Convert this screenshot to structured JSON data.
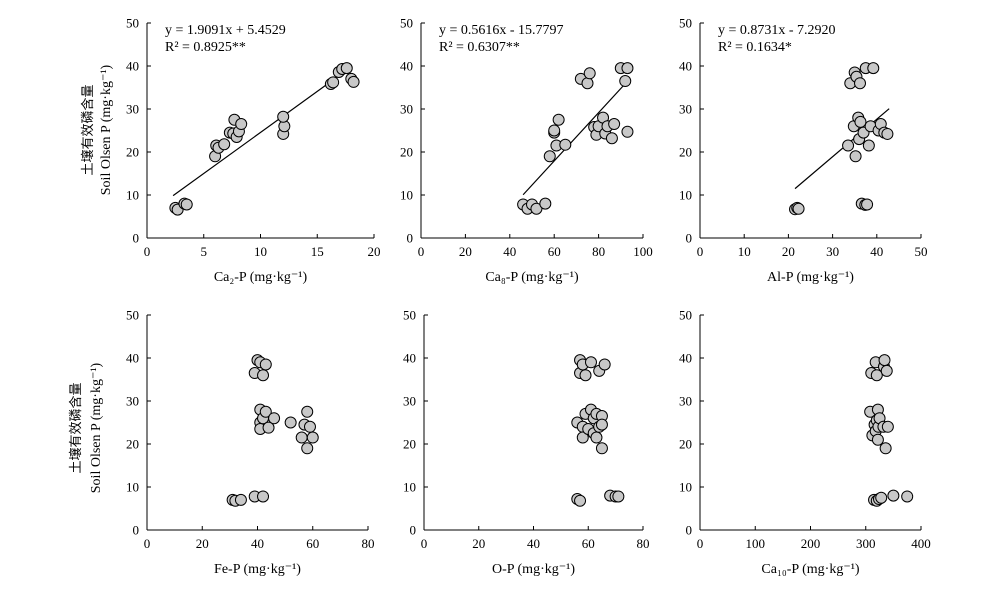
{
  "figure": {
    "ylabel_cn": "土壤有效磷含量",
    "ylabel_en": "Soil Olsen P (mg·kg⁻¹)"
  },
  "colors": {
    "marker_fill": "#c8c8c8",
    "marker_stroke": "#000000",
    "line": "#000000"
  },
  "chart_data": [
    {
      "type": "scatter",
      "xlabel": "Ca₂-P (mg·kg⁻¹)",
      "ylabel": "Soil Olsen P (mg·kg⁻¹)",
      "xlim": [
        0,
        20
      ],
      "ylim": [
        0,
        50
      ],
      "xticks": [
        0,
        5,
        10,
        15,
        20
      ],
      "yticks": [
        0,
        10,
        20,
        30,
        40,
        50
      ],
      "equation": "y = 1.9091x + 5.4529",
      "r2": "R² = 0.8925**",
      "fit": {
        "slope": 1.9091,
        "intercept": 5.4529,
        "x_range": [
          2.3,
          18.0
        ]
      },
      "points": [
        [
          2.5,
          7.0
        ],
        [
          2.7,
          6.6
        ],
        [
          3.3,
          8.0
        ],
        [
          3.5,
          7.8
        ],
        [
          6.0,
          19.0
        ],
        [
          6.1,
          21.5
        ],
        [
          6.3,
          21.0
        ],
        [
          6.8,
          21.8
        ],
        [
          7.3,
          24.5
        ],
        [
          7.6,
          24.3
        ],
        [
          7.7,
          27.5
        ],
        [
          7.9,
          23.5
        ],
        [
          8.1,
          24.8
        ],
        [
          8.3,
          26.5
        ],
        [
          12.0,
          24.2
        ],
        [
          12.1,
          26.0
        ],
        [
          12.0,
          28.2
        ],
        [
          16.2,
          35.8
        ],
        [
          16.4,
          36.2
        ],
        [
          16.9,
          38.6
        ],
        [
          17.2,
          39.3
        ],
        [
          17.6,
          39.5
        ],
        [
          18.0,
          37.0
        ],
        [
          18.2,
          36.3
        ]
      ]
    },
    {
      "type": "scatter",
      "xlabel": "Ca₈-P (mg·kg⁻¹)",
      "ylabel": "Soil Olsen P (mg·kg⁻¹)",
      "xlim": [
        0,
        100
      ],
      "ylim": [
        0,
        50
      ],
      "xticks": [
        0,
        20,
        40,
        60,
        80,
        100
      ],
      "yticks": [
        0,
        10,
        20,
        30,
        40,
        50
      ],
      "equation": "y = 0.5616x - 15.7797",
      "r2": "R² = 0.6307**",
      "fit": {
        "slope": 0.5616,
        "intercept": -15.7797,
        "x_range": [
          46,
          93
        ]
      },
      "points": [
        [
          46,
          7.8
        ],
        [
          48,
          6.8
        ],
        [
          50,
          7.8
        ],
        [
          52,
          6.8
        ],
        [
          56,
          8.0
        ],
        [
          58,
          19.0
        ],
        [
          60,
          24.5
        ],
        [
          60,
          25.0
        ],
        [
          61,
          21.5
        ],
        [
          62,
          27.5
        ],
        [
          65,
          21.7
        ],
        [
          72,
          37.0
        ],
        [
          75,
          36.0
        ],
        [
          76,
          38.3
        ],
        [
          78,
          25.8
        ],
        [
          79,
          24.0
        ],
        [
          80,
          26.0
        ],
        [
          82,
          28.0
        ],
        [
          83,
          24.3
        ],
        [
          84,
          26.0
        ],
        [
          86,
          23.2
        ],
        [
          87,
          26.5
        ],
        [
          90,
          39.5
        ],
        [
          92,
          36.5
        ],
        [
          93,
          24.7
        ],
        [
          93,
          39.5
        ]
      ]
    },
    {
      "type": "scatter",
      "xlabel": "Al-P (mg·kg⁻¹)",
      "ylabel": "Soil Olsen P (mg·kg⁻¹)",
      "xlim": [
        0,
        50
      ],
      "ylim": [
        0,
        50
      ],
      "xticks": [
        0,
        10,
        20,
        30,
        40,
        50
      ],
      "yticks": [
        0,
        10,
        20,
        30,
        40,
        50
      ],
      "equation": "y = 0.8731x - 7.2920",
      "r2": "R² = 0.1634*",
      "fit": {
        "slope": 0.8731,
        "intercept": -7.292,
        "x_range": [
          21.5,
          42.8
        ]
      },
      "points": [
        [
          21.5,
          6.7
        ],
        [
          22.0,
          7.0
        ],
        [
          22.3,
          6.8
        ],
        [
          33.5,
          21.5
        ],
        [
          34.0,
          36.0
        ],
        [
          35.0,
          38.5
        ],
        [
          35.2,
          19.0
        ],
        [
          35.4,
          37.5
        ],
        [
          34.8,
          26.0
        ],
        [
          35.8,
          28.0
        ],
        [
          36.0,
          23.0
        ],
        [
          36.2,
          36.0
        ],
        [
          36.3,
          27.0
        ],
        [
          36.6,
          8.0
        ],
        [
          37.0,
          24.5
        ],
        [
          37.4,
          7.7
        ],
        [
          37.5,
          39.5
        ],
        [
          37.8,
          7.8
        ],
        [
          38.2,
          21.5
        ],
        [
          38.6,
          26.0
        ],
        [
          39.2,
          39.5
        ],
        [
          40.4,
          25.0
        ],
        [
          40.9,
          26.5
        ],
        [
          41.7,
          24.5
        ],
        [
          42.4,
          24.2
        ]
      ]
    },
    {
      "type": "scatter",
      "xlabel": "Fe-P (mg·kg⁻¹)",
      "ylabel": "Soil Olsen P (mg·kg⁻¹)",
      "xlim": [
        0,
        80
      ],
      "ylim": [
        0,
        50
      ],
      "xticks": [
        0,
        20,
        40,
        60,
        80
      ],
      "yticks": [
        0,
        10,
        20,
        30,
        40,
        50
      ],
      "points": [
        [
          31,
          7.0
        ],
        [
          32,
          6.8
        ],
        [
          34,
          7.0
        ],
        [
          39,
          36.5
        ],
        [
          40,
          39.5
        ],
        [
          39,
          7.8
        ],
        [
          41,
          39.0
        ],
        [
          41,
          28.0
        ],
        [
          42,
          36.0
        ],
        [
          41,
          25.0
        ],
        [
          41,
          23.5
        ],
        [
          42,
          26.0
        ],
        [
          43,
          38.5
        ],
        [
          42,
          7.8
        ],
        [
          43,
          27.5
        ],
        [
          44,
          23.8
        ],
        [
          46,
          26.0
        ],
        [
          52,
          25.0
        ],
        [
          56,
          21.5
        ],
        [
          57,
          24.5
        ],
        [
          58,
          19.0
        ],
        [
          58,
          27.5
        ],
        [
          59,
          24.0
        ],
        [
          60,
          21.5
        ]
      ]
    },
    {
      "type": "scatter",
      "xlabel": "O-P (mg·kg⁻¹)",
      "ylabel": "Soil Olsen P (mg·kg⁻¹)",
      "xlim": [
        0,
        80
      ],
      "ylim": [
        0,
        50
      ],
      "xticks": [
        0,
        20,
        40,
        60,
        80
      ],
      "yticks": [
        0,
        10,
        20,
        30,
        40,
        50
      ],
      "points": [
        [
          56,
          7.2
        ],
        [
          57,
          6.8
        ],
        [
          56,
          25.0
        ],
        [
          57,
          36.5
        ],
        [
          57,
          39.5
        ],
        [
          58,
          38.5
        ],
        [
          58,
          24.0
        ],
        [
          58,
          21.5
        ],
        [
          59,
          27.0
        ],
        [
          59,
          36.0
        ],
        [
          60,
          23.5
        ],
        [
          61,
          28.0
        ],
        [
          61,
          39.0
        ],
        [
          62,
          22.5
        ],
        [
          62,
          26.0
        ],
        [
          63,
          27.0
        ],
        [
          63,
          21.5
        ],
        [
          64,
          24.0
        ],
        [
          64,
          37.0
        ],
        [
          65,
          26.5
        ],
        [
          65,
          24.5
        ],
        [
          65,
          19.0
        ],
        [
          66,
          38.5
        ],
        [
          68,
          8.0
        ],
        [
          70,
          7.8
        ],
        [
          71,
          7.8
        ]
      ]
    },
    {
      "type": "scatter",
      "xlabel": "Ca₁₀-P (mg·kg⁻¹)",
      "ylabel": "Soil Olsen P (mg·kg⁻¹)",
      "xlim": [
        0,
        400
      ],
      "ylim": [
        0,
        50
      ],
      "xticks": [
        0,
        100,
        200,
        300,
        400
      ],
      "yticks": [
        0,
        10,
        20,
        30,
        40,
        50
      ],
      "points": [
        [
          308,
          27.5
        ],
        [
          310,
          36.5
        ],
        [
          312,
          22.0
        ],
        [
          315,
          7.0
        ],
        [
          316,
          24.5
        ],
        [
          318,
          39.0
        ],
        [
          318,
          23.0
        ],
        [
          320,
          6.8
        ],
        [
          320,
          36.0
        ],
        [
          320,
          25.5
        ],
        [
          322,
          28.0
        ],
        [
          322,
          21.0
        ],
        [
          323,
          24.0
        ],
        [
          324,
          7.2
        ],
        [
          325,
          26.0
        ],
        [
          328,
          7.5
        ],
        [
          332,
          24.0
        ],
        [
          333,
          38.0
        ],
        [
          334,
          39.5
        ],
        [
          336,
          19.0
        ],
        [
          338,
          37.0
        ],
        [
          340,
          24.0
        ],
        [
          350,
          8.0
        ],
        [
          375,
          7.8
        ]
      ]
    }
  ]
}
